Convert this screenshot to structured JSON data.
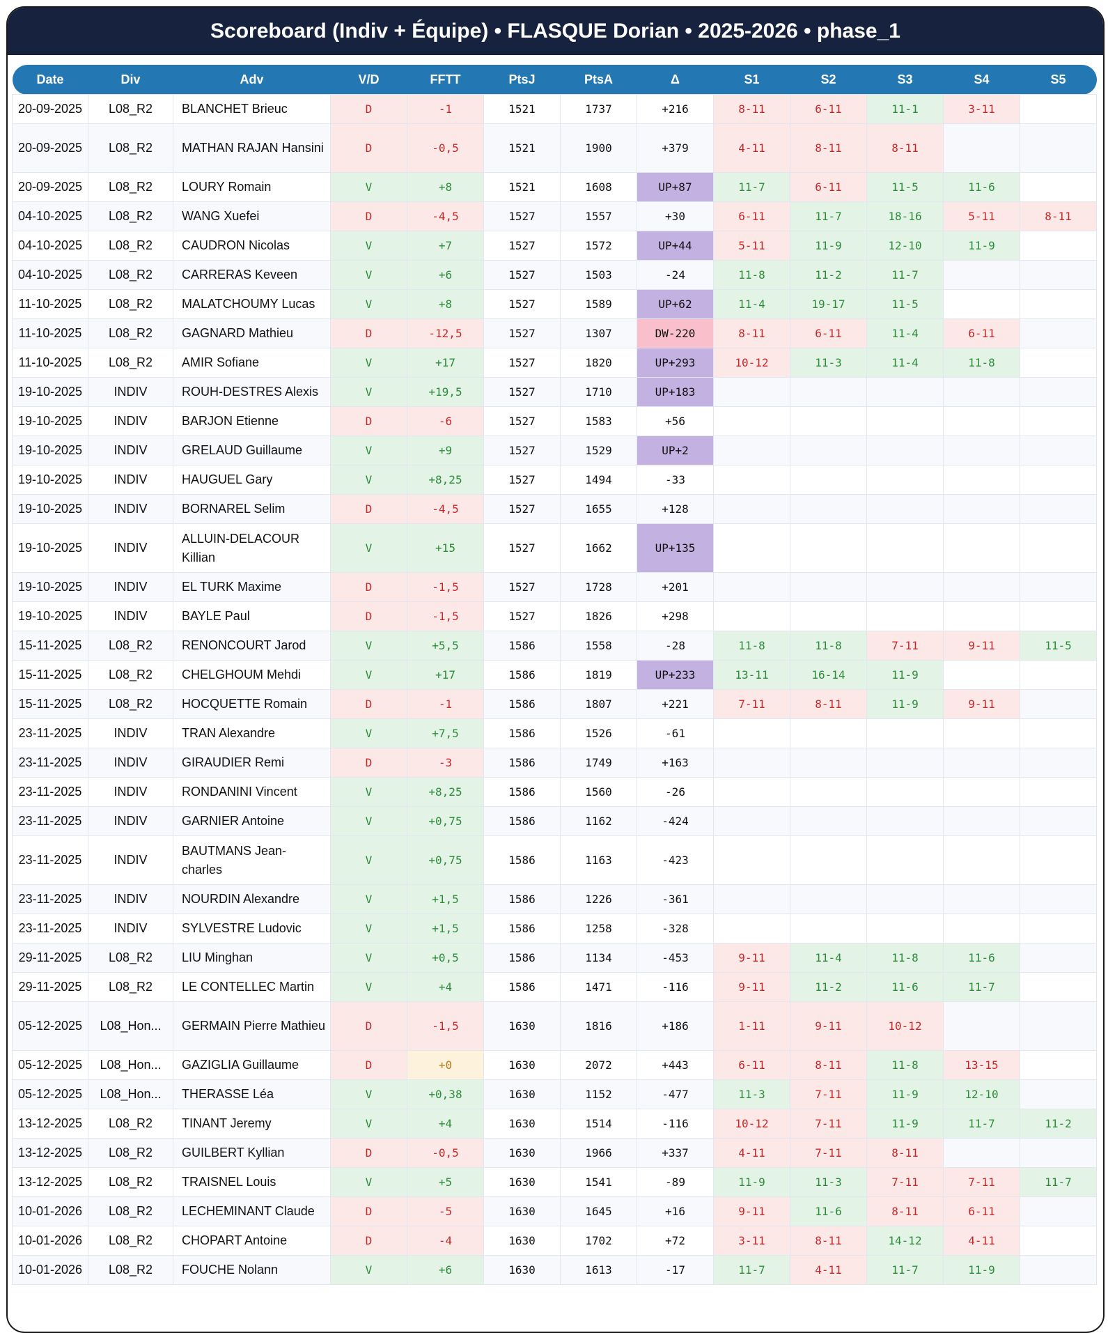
{
  "title": "Scoreboard (Indiv + Équipe) • FLASQUE Dorian • 2025-2026 • phase_1",
  "columns": [
    "Date",
    "Div",
    "Adv",
    "V/D",
    "FFTT",
    "PtsJ",
    "PtsA",
    "Δ",
    "S1",
    "S2",
    "S3",
    "S4",
    "S5"
  ],
  "colors": {
    "header": "#2377b3",
    "titlebar": "#16223e",
    "win_bg": "#e3f4e7",
    "loss_bg": "#fde8e8",
    "up_bg": "#c3b1e1",
    "dw_bg": "#f9c0cb",
    "zero_bg": "#fdf3dc"
  },
  "rows": [
    [
      "20-09-2025",
      "L08_R2",
      "BLANCHET Brieuc",
      "D",
      "-1",
      "1521",
      "1737",
      "+216",
      "8-11",
      "6-11",
      "11-1",
      "3-11",
      ""
    ],
    [
      "20-09-2025",
      "L08_R2",
      "MATHAN RAJAN Hansini",
      "D",
      "-0,5",
      "1521",
      "1900",
      "+379",
      "4-11",
      "8-11",
      "8-11",
      "",
      ""
    ],
    [
      "20-09-2025",
      "L08_R2",
      "LOURY Romain",
      "V",
      "+8",
      "1521",
      "1608",
      "UP+87",
      "11-7",
      "6-11",
      "11-5",
      "11-6",
      ""
    ],
    [
      "04-10-2025",
      "L08_R2",
      "WANG Xuefei",
      "D",
      "-4,5",
      "1527",
      "1557",
      "+30",
      "6-11",
      "11-7",
      "18-16",
      "5-11",
      "8-11"
    ],
    [
      "04-10-2025",
      "L08_R2",
      "CAUDRON Nicolas",
      "V",
      "+7",
      "1527",
      "1572",
      "UP+44",
      "5-11",
      "11-9",
      "12-10",
      "11-9",
      ""
    ],
    [
      "04-10-2025",
      "L08_R2",
      "CARRERAS Keveen",
      "V",
      "+6",
      "1527",
      "1503",
      "-24",
      "11-8",
      "11-2",
      "11-7",
      "",
      ""
    ],
    [
      "11-10-2025",
      "L08_R2",
      "MALATCHOUMY Lucas",
      "V",
      "+8",
      "1527",
      "1589",
      "UP+62",
      "11-4",
      "19-17",
      "11-5",
      "",
      ""
    ],
    [
      "11-10-2025",
      "L08_R2",
      "GAGNARD Mathieu",
      "D",
      "-12,5",
      "1527",
      "1307",
      "DW-220",
      "8-11",
      "6-11",
      "11-4",
      "6-11",
      ""
    ],
    [
      "11-10-2025",
      "L08_R2",
      "AMIR Sofiane",
      "V",
      "+17",
      "1527",
      "1820",
      "UP+293",
      "10-12",
      "11-3",
      "11-4",
      "11-8",
      ""
    ],
    [
      "19-10-2025",
      "INDIV",
      "ROUH-DESTRES Alexis",
      "V",
      "+19,5",
      "1527",
      "1710",
      "UP+183",
      "",
      "",
      "",
      "",
      ""
    ],
    [
      "19-10-2025",
      "INDIV",
      "BARJON Etienne",
      "D",
      "-6",
      "1527",
      "1583",
      "+56",
      "",
      "",
      "",
      "",
      ""
    ],
    [
      "19-10-2025",
      "INDIV",
      "GRELAUD Guillaume",
      "V",
      "+9",
      "1527",
      "1529",
      "UP+2",
      "",
      "",
      "",
      "",
      ""
    ],
    [
      "19-10-2025",
      "INDIV",
      "HAUGUEL Gary",
      "V",
      "+8,25",
      "1527",
      "1494",
      "-33",
      "",
      "",
      "",
      "",
      ""
    ],
    [
      "19-10-2025",
      "INDIV",
      "BORNAREL Selim",
      "D",
      "-4,5",
      "1527",
      "1655",
      "+128",
      "",
      "",
      "",
      "",
      ""
    ],
    [
      "19-10-2025",
      "INDIV",
      "ALLUIN-DELACOUR Killian",
      "V",
      "+15",
      "1527",
      "1662",
      "UP+135",
      "",
      "",
      "",
      "",
      ""
    ],
    [
      "19-10-2025",
      "INDIV",
      "EL TURK Maxime",
      "D",
      "-1,5",
      "1527",
      "1728",
      "+201",
      "",
      "",
      "",
      "",
      ""
    ],
    [
      "19-10-2025",
      "INDIV",
      "BAYLE Paul",
      "D",
      "-1,5",
      "1527",
      "1826",
      "+298",
      "",
      "",
      "",
      "",
      ""
    ],
    [
      "15-11-2025",
      "L08_R2",
      "RENONCOURT Jarod",
      "V",
      "+5,5",
      "1586",
      "1558",
      "-28",
      "11-8",
      "11-8",
      "7-11",
      "9-11",
      "11-5"
    ],
    [
      "15-11-2025",
      "L08_R2",
      "CHELGHOUM Mehdi",
      "V",
      "+17",
      "1586",
      "1819",
      "UP+233",
      "13-11",
      "16-14",
      "11-9",
      "",
      ""
    ],
    [
      "15-11-2025",
      "L08_R2",
      "HOCQUETTE Romain",
      "D",
      "-1",
      "1586",
      "1807",
      "+221",
      "7-11",
      "8-11",
      "11-9",
      "9-11",
      ""
    ],
    [
      "23-11-2025",
      "INDIV",
      "TRAN Alexandre",
      "V",
      "+7,5",
      "1586",
      "1526",
      "-61",
      "",
      "",
      "",
      "",
      ""
    ],
    [
      "23-11-2025",
      "INDIV",
      "GIRAUDIER Remi",
      "D",
      "-3",
      "1586",
      "1749",
      "+163",
      "",
      "",
      "",
      "",
      ""
    ],
    [
      "23-11-2025",
      "INDIV",
      "RONDANINI Vincent",
      "V",
      "+8,25",
      "1586",
      "1560",
      "-26",
      "",
      "",
      "",
      "",
      ""
    ],
    [
      "23-11-2025",
      "INDIV",
      "GARNIER Antoine",
      "V",
      "+0,75",
      "1586",
      "1162",
      "-424",
      "",
      "",
      "",
      "",
      ""
    ],
    [
      "23-11-2025",
      "INDIV",
      "BAUTMANS Jean-charles",
      "V",
      "+0,75",
      "1586",
      "1163",
      "-423",
      "",
      "",
      "",
      "",
      ""
    ],
    [
      "23-11-2025",
      "INDIV",
      "NOURDIN Alexandre",
      "V",
      "+1,5",
      "1586",
      "1226",
      "-361",
      "",
      "",
      "",
      "",
      ""
    ],
    [
      "23-11-2025",
      "INDIV",
      "SYLVESTRE Ludovic",
      "V",
      "+1,5",
      "1586",
      "1258",
      "-328",
      "",
      "",
      "",
      "",
      ""
    ],
    [
      "29-11-2025",
      "L08_R2",
      "LIU Minghan",
      "V",
      "+0,5",
      "1586",
      "1134",
      "-453",
      "9-11",
      "11-4",
      "11-8",
      "11-6",
      ""
    ],
    [
      "29-11-2025",
      "L08_R2",
      "LE CONTELLEC Martin",
      "V",
      "+4",
      "1586",
      "1471",
      "-116",
      "9-11",
      "11-2",
      "11-6",
      "11-7",
      ""
    ],
    [
      "05-12-2025",
      "L08_Hon...",
      "GERMAIN Pierre Mathieu",
      "D",
      "-1,5",
      "1630",
      "1816",
      "+186",
      "1-11",
      "9-11",
      "10-12",
      "",
      ""
    ],
    [
      "05-12-2025",
      "L08_Hon...",
      "GAZIGLIA Guillaume",
      "D",
      "+0",
      "1630",
      "2072",
      "+443",
      "6-11",
      "8-11",
      "11-8",
      "13-15",
      ""
    ],
    [
      "05-12-2025",
      "L08_Hon...",
      "THERASSE Léa",
      "V",
      "+0,38",
      "1630",
      "1152",
      "-477",
      "11-3",
      "7-11",
      "11-9",
      "12-10",
      ""
    ],
    [
      "13-12-2025",
      "L08_R2",
      "TINANT Jeremy",
      "V",
      "+4",
      "1630",
      "1514",
      "-116",
      "10-12",
      "7-11",
      "11-9",
      "11-7",
      "11-2"
    ],
    [
      "13-12-2025",
      "L08_R2",
      "GUILBERT Kyllian",
      "D",
      "-0,5",
      "1630",
      "1966",
      "+337",
      "4-11",
      "7-11",
      "8-11",
      "",
      ""
    ],
    [
      "13-12-2025",
      "L08_R2",
      "TRAISNEL Louis",
      "V",
      "+5",
      "1630",
      "1541",
      "-89",
      "11-9",
      "11-3",
      "7-11",
      "7-11",
      "11-7"
    ],
    [
      "10-01-2026",
      "L08_R2",
      "LECHEMINANT Claude",
      "D",
      "-5",
      "1630",
      "1645",
      "+16",
      "9-11",
      "11-6",
      "8-11",
      "6-11",
      ""
    ],
    [
      "10-01-2026",
      "L08_R2",
      "CHOPART Antoine",
      "D",
      "-4",
      "1630",
      "1702",
      "+72",
      "3-11",
      "8-11",
      "14-12",
      "4-11",
      ""
    ],
    [
      "10-01-2026",
      "L08_R2",
      "FOUCHE Nolann",
      "V",
      "+6",
      "1630",
      "1613",
      "-17",
      "11-7",
      "4-11",
      "11-7",
      "11-9",
      ""
    ]
  ]
}
